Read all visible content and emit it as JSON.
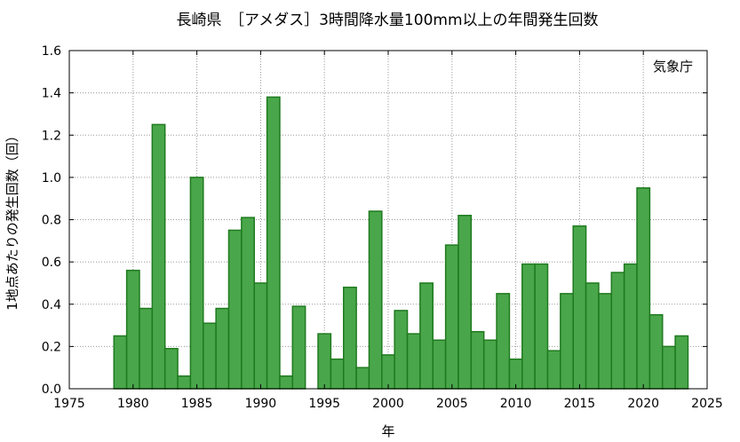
{
  "chart_data": {
    "type": "bar",
    "title": "長崎県　［アメダス］3時間降水量100mm以上の年間発生回数",
    "xlabel": "年",
    "ylabel": "1地点あたりの発生回数（回）",
    "source_note": "気象庁",
    "xlim": [
      1975,
      2025
    ],
    "ylim": [
      0,
      1.6
    ],
    "xticks": [
      "1975",
      "1980",
      "1985",
      "1990",
      "1995",
      "2000",
      "2005",
      "2010",
      "2015",
      "2020",
      "2025"
    ],
    "yticks": [
      "0.0",
      "0.2",
      "0.4",
      "0.6",
      "0.8",
      "1.0",
      "1.2",
      "1.4",
      "1.6"
    ],
    "grid": true,
    "bar_color": "#4aa64a",
    "bar_edge_color": "#1f7a1f",
    "categories": [
      1979,
      1980,
      1981,
      1982,
      1983,
      1984,
      1985,
      1986,
      1987,
      1988,
      1989,
      1990,
      1991,
      1992,
      1993,
      1994,
      1995,
      1996,
      1997,
      1998,
      1999,
      2000,
      2001,
      2002,
      2003,
      2004,
      2005,
      2006,
      2007,
      2008,
      2009,
      2010,
      2011,
      2012,
      2013,
      2014,
      2015,
      2016,
      2017,
      2018,
      2019,
      2020,
      2021,
      2022,
      2023
    ],
    "values": [
      0.25,
      0.56,
      0.38,
      1.25,
      0.19,
      0.06,
      1.0,
      0.31,
      0.38,
      0.75,
      0.81,
      0.5,
      1.38,
      0.06,
      0.39,
      0.0,
      0.26,
      0.14,
      0.48,
      0.1,
      0.84,
      0.16,
      0.37,
      0.26,
      0.5,
      0.23,
      0.68,
      0.82,
      0.27,
      0.23,
      0.45,
      0.14,
      0.59,
      0.59,
      0.18,
      0.45,
      0.77,
      0.5,
      0.45,
      0.55,
      0.59,
      0.95,
      0.35,
      0.2,
      0.25
    ]
  }
}
